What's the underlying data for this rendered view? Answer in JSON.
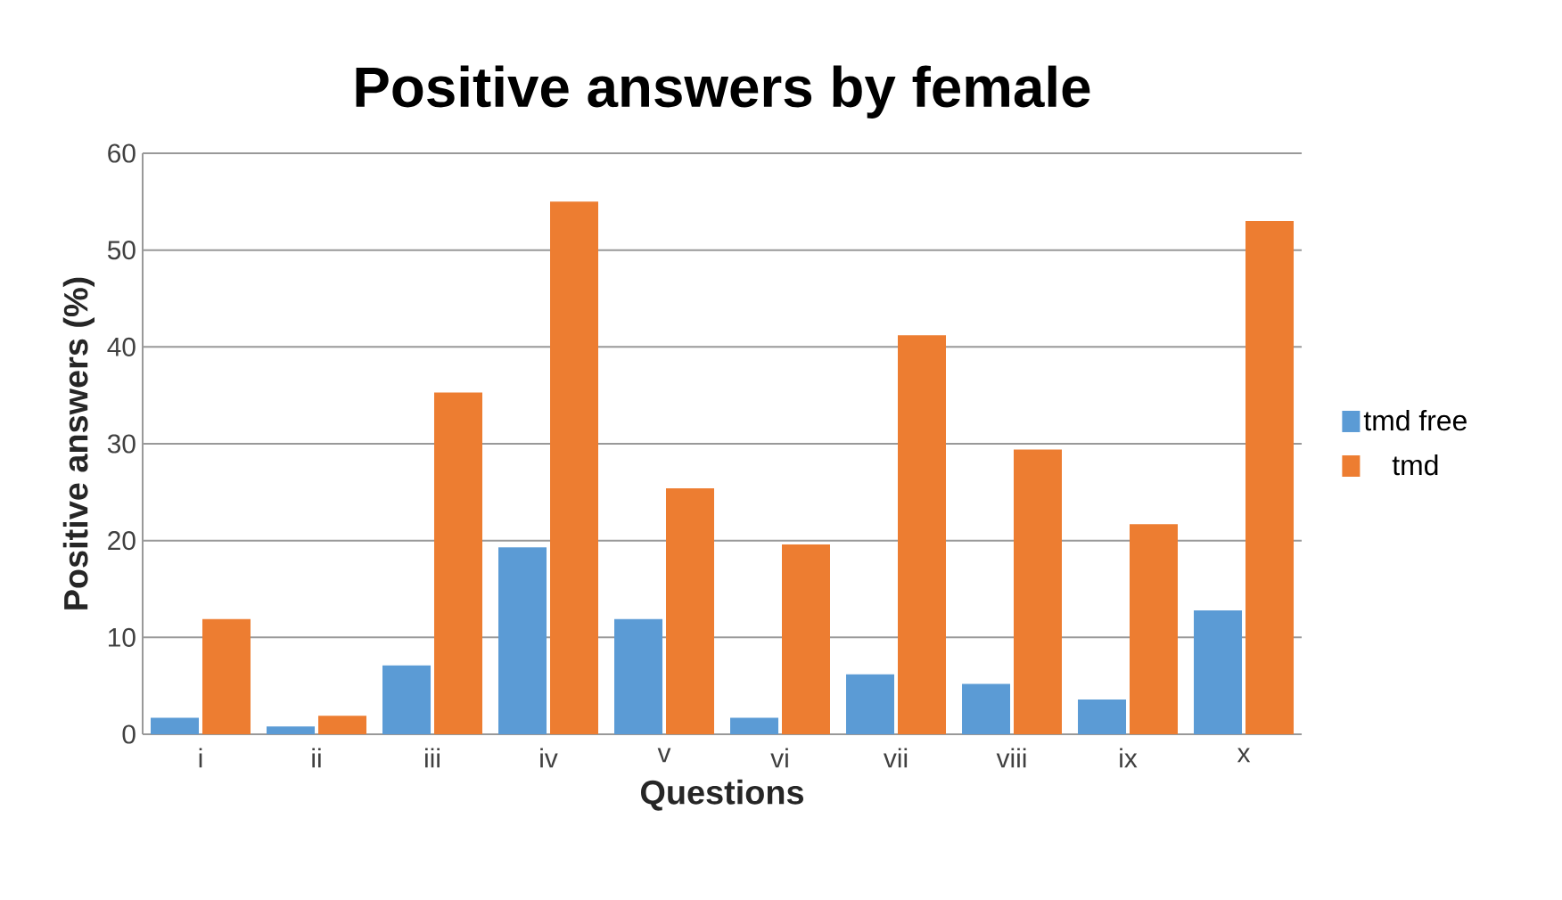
{
  "chart_data": {
    "type": "bar",
    "title": "Positive answers by female",
    "xlabel": "Questions",
    "ylabel": "Positive answers (%)",
    "categories": [
      "i",
      "ii",
      "iii",
      "iv",
      "v",
      "vi",
      "vii",
      "viii",
      "ix",
      "x"
    ],
    "series": [
      {
        "name": "tmd free",
        "color": "#5b9bd5",
        "values": [
          1.7,
          0.8,
          7.1,
          19.3,
          11.9,
          1.7,
          6.2,
          5.2,
          3.6,
          12.8
        ]
      },
      {
        "name": "tmd",
        "color": "#ed7d31",
        "values": [
          11.9,
          1.9,
          35.3,
          55.0,
          25.4,
          19.6,
          41.2,
          29.4,
          21.7,
          53.0
        ]
      }
    ],
    "ylim": [
      0,
      60
    ],
    "yticks": [
      0,
      10,
      20,
      30,
      40,
      50,
      60
    ],
    "grid": "y",
    "legend": "right"
  }
}
